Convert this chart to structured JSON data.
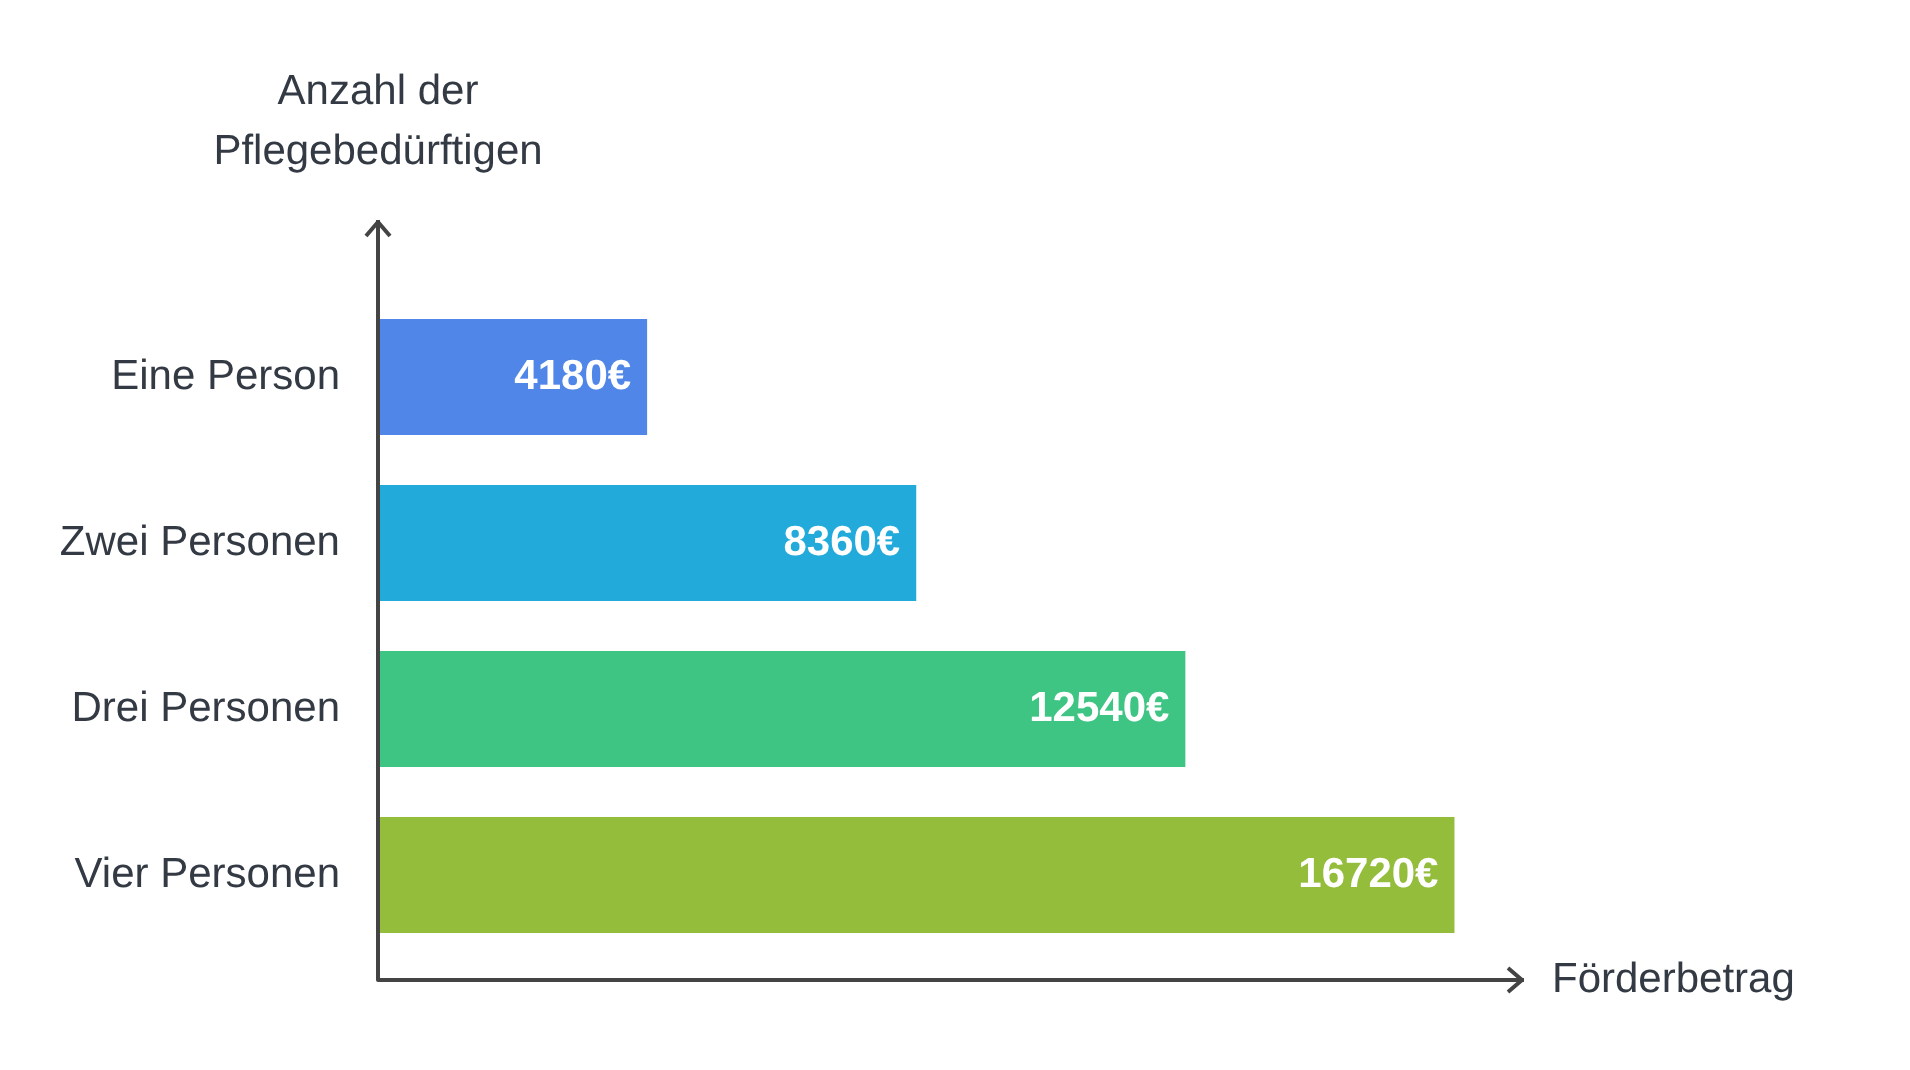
{
  "chart_data": {
    "type": "bar",
    "orientation": "horizontal",
    "categories": [
      "Eine Person",
      "Zwei Personen",
      "Drei Personen",
      "Vier Personen"
    ],
    "values": [
      4180,
      8360,
      12540,
      16720
    ],
    "value_labels": [
      "4180€",
      "8360€",
      "12540€",
      "16720€"
    ],
    "colors": [
      "#4f86e8",
      "#22aadb",
      "#3ec483",
      "#93bd3a"
    ],
    "xlim": [
      0,
      17800
    ],
    "tick_labels": "y",
    "xlabel": "Förderbetrag",
    "ylabel": "Anzahl der Pflegebedürftigen"
  }
}
